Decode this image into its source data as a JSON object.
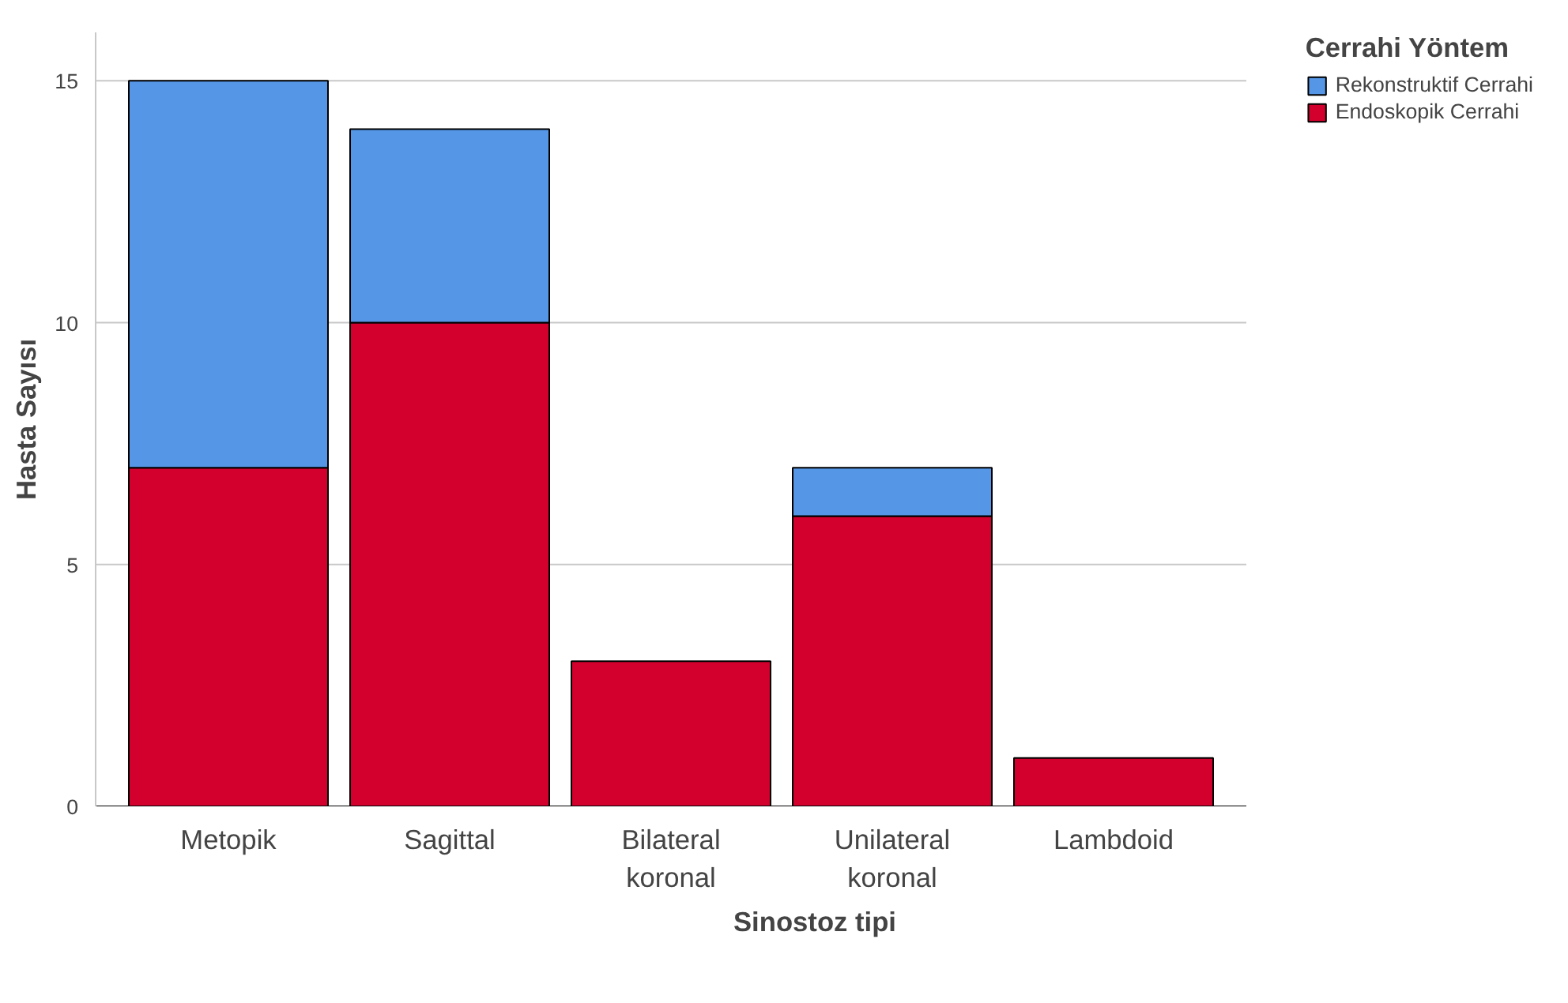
{
  "chart_data": {
    "type": "bar",
    "stacked": true,
    "xlabel": "Sinostoz tipi",
    "ylabel": "Hasta Sayısı",
    "legend_title": "Cerrahi Yöntem",
    "categories": [
      "Metopik",
      "Sagittal",
      "Bilateral\nkoronal",
      "Unilateral\nkoronal",
      "Lambdoid"
    ],
    "series": [
      {
        "name": "Endoskopik Cerrahi",
        "color": "#d3002d",
        "values": [
          7,
          10,
          3,
          6,
          1
        ]
      },
      {
        "name": "Rekonstruktif Cerrahi",
        "color": "#5596e6",
        "values": [
          8,
          4,
          0,
          1,
          0
        ]
      }
    ],
    "ylim": [
      0,
      16
    ],
    "yticks": [
      0,
      5,
      10,
      15
    ],
    "grid": "y",
    "legend": "top right"
  }
}
